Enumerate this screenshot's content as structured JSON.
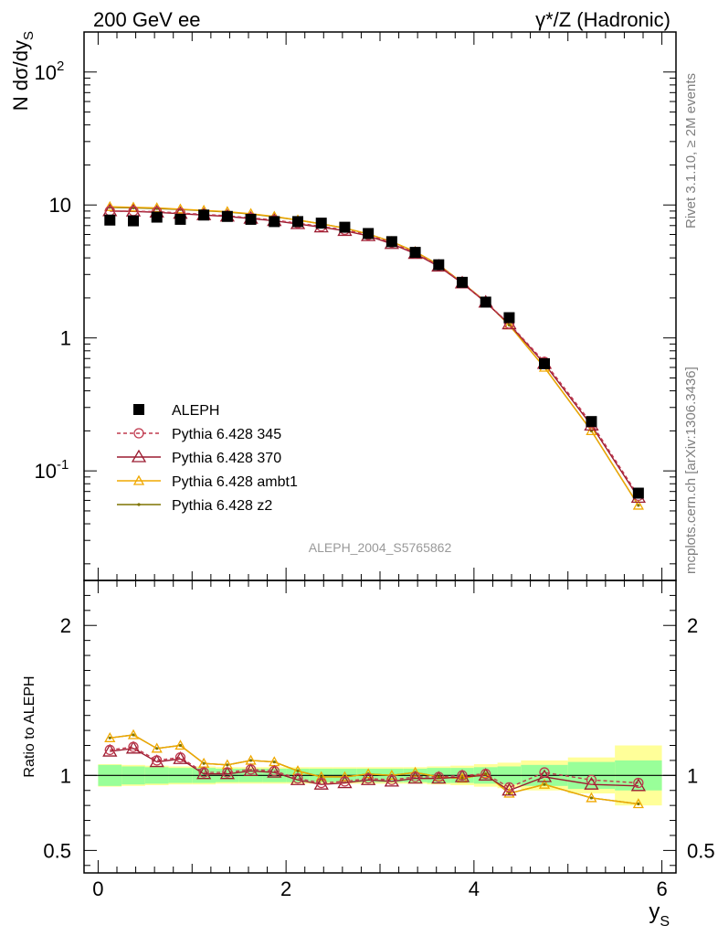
{
  "header": {
    "left": "200 GeV ee",
    "right": "γ*/Z (Hadronic)"
  },
  "side_text": {
    "rivet": "Rivet 3.1.10, ≥ 2M events",
    "mcplots": "mcplots.cern.ch [arXiv:1306.3436]"
  },
  "watermark": "ALEPH_2004_S5765862",
  "colors": {
    "data": "#000000",
    "p345": "#c03a4f",
    "p370": "#9b1b30",
    "ambt1": "#f0a800",
    "z2": "#7f7400",
    "band_inner": "#99ff99",
    "band_outer": "#ffff99"
  },
  "chart_data": [
    {
      "type": "scatter",
      "panel": "main",
      "ylabel": "N dσ/dy_S",
      "yscale": "log",
      "ylim": [
        0.015,
        200
      ],
      "xlim": [
        -0.15,
        6.15
      ],
      "yticks": [
        "10^-1",
        "1",
        "10",
        "10^2"
      ],
      "legend_placement": "lower-left",
      "x": [
        0.125,
        0.375,
        0.625,
        0.875,
        1.125,
        1.375,
        1.625,
        1.875,
        2.125,
        2.375,
        2.625,
        2.875,
        3.125,
        3.375,
        3.625,
        3.875,
        4.125,
        4.375,
        4.75,
        5.25,
        5.75
      ],
      "series": [
        {
          "name": "ALEPH",
          "key": "data",
          "marker": "square",
          "values": [
            7.7,
            7.6,
            8.1,
            7.8,
            8.4,
            8.2,
            7.8,
            7.5,
            7.5,
            7.3,
            6.8,
            6.1,
            5.3,
            4.4,
            3.55,
            2.62,
            1.86,
            1.42,
            0.64,
            0.235,
            0.068
          ]
        },
        {
          "name": "Pythia 6.428 345",
          "key": "p345",
          "marker": "circle",
          "dashed": true,
          "values": [
            9.0,
            9.0,
            8.9,
            8.7,
            8.5,
            8.3,
            8.0,
            7.7,
            7.3,
            6.9,
            6.5,
            5.95,
            5.2,
            4.35,
            3.5,
            2.6,
            1.86,
            1.28,
            0.66,
            0.228,
            0.065
          ]
        },
        {
          "name": "Pythia 6.428 370",
          "key": "p370",
          "marker": "triangle",
          "values": [
            9.0,
            8.95,
            8.8,
            8.6,
            8.4,
            8.2,
            7.9,
            7.6,
            7.2,
            6.8,
            6.4,
            5.85,
            5.1,
            4.3,
            3.45,
            2.58,
            1.85,
            1.27,
            0.64,
            0.22,
            0.063
          ]
        },
        {
          "name": "Pythia 6.428 ambt1",
          "key": "ambt1",
          "marker": "triangle-small",
          "values": [
            9.7,
            9.6,
            9.5,
            9.3,
            9.1,
            8.9,
            8.6,
            8.2,
            7.7,
            7.2,
            6.7,
            6.05,
            5.3,
            4.45,
            3.55,
            2.6,
            1.87,
            1.25,
            0.6,
            0.2,
            0.055
          ]
        },
        {
          "name": "Pythia 6.428 z2",
          "key": "z2",
          "marker": "dot",
          "values": [
            9.6,
            9.5,
            9.4,
            9.25,
            9.05,
            8.85,
            8.55,
            8.15,
            7.7,
            7.2,
            6.7,
            6.05,
            5.3,
            4.45,
            3.55,
            2.6,
            1.87,
            1.25,
            0.6,
            0.2,
            0.055
          ]
        }
      ]
    },
    {
      "type": "line",
      "panel": "ratio",
      "ylabel": "Ratio to ALEPH",
      "xlabel": "y_S",
      "ylim": [
        0.35,
        2.3
      ],
      "xlim": [
        -0.15,
        6.15
      ],
      "xticks": [
        "0",
        "2",
        "4",
        "6"
      ],
      "yticks": [
        "0.5",
        "1",
        "2"
      ],
      "reference_line": 1,
      "bins": [
        [
          0,
          0.25
        ],
        [
          0.25,
          0.5
        ],
        [
          0.5,
          0.75
        ],
        [
          0.75,
          1
        ],
        [
          1,
          1.25
        ],
        [
          1.25,
          1.5
        ],
        [
          1.5,
          1.75
        ],
        [
          1.75,
          2
        ],
        [
          2,
          2.25
        ],
        [
          2.25,
          2.5
        ],
        [
          2.5,
          2.75
        ],
        [
          2.75,
          3
        ],
        [
          3,
          3.25
        ],
        [
          3.25,
          3.5
        ],
        [
          3.5,
          3.75
        ],
        [
          3.75,
          4
        ],
        [
          4,
          4.25
        ],
        [
          4.25,
          4.5
        ],
        [
          4.5,
          5
        ],
        [
          5,
          5.5
        ],
        [
          5.5,
          6
        ]
      ],
      "band_inner": [
        0.07,
        0.06,
        0.055,
        0.05,
        0.05,
        0.045,
        0.045,
        0.045,
        0.045,
        0.045,
        0.045,
        0.045,
        0.045,
        0.045,
        0.05,
        0.05,
        0.055,
        0.06,
        0.07,
        0.09,
        0.1
      ],
      "band_outer": [
        0.075,
        0.07,
        0.065,
        0.06,
        0.06,
        0.055,
        0.055,
        0.055,
        0.055,
        0.055,
        0.055,
        0.055,
        0.055,
        0.055,
        0.06,
        0.065,
        0.075,
        0.085,
        0.1,
        0.12,
        0.2
      ],
      "x": [
        0.125,
        0.375,
        0.625,
        0.875,
        1.125,
        1.375,
        1.625,
        1.875,
        2.125,
        2.375,
        2.625,
        2.875,
        3.125,
        3.375,
        3.625,
        3.875,
        4.125,
        4.375,
        4.75,
        5.25,
        5.75
      ],
      "series": [
        {
          "name": "Pythia 6.428 345",
          "key": "p345",
          "values": [
            1.17,
            1.19,
            1.1,
            1.12,
            1.02,
            1.02,
            1.04,
            1.03,
            0.98,
            0.95,
            0.96,
            0.98,
            0.97,
            0.99,
            0.99,
            1.0,
            1.01,
            0.92,
            1.02,
            0.97,
            0.95
          ]
        },
        {
          "name": "Pythia 6.428 370",
          "key": "p370",
          "values": [
            1.16,
            1.18,
            1.09,
            1.11,
            1.01,
            1.01,
            1.03,
            1.02,
            0.97,
            0.94,
            0.95,
            0.97,
            0.96,
            0.98,
            0.98,
            0.99,
            1.0,
            0.9,
            0.99,
            0.94,
            0.93
          ]
        },
        {
          "name": "Pythia 6.428 ambt1",
          "key": "ambt1",
          "values": [
            1.25,
            1.27,
            1.18,
            1.2,
            1.08,
            1.07,
            1.1,
            1.09,
            1.03,
            0.99,
            0.99,
            1.01,
            1.0,
            1.02,
            0.99,
            0.98,
            1.01,
            0.88,
            0.94,
            0.85,
            0.81
          ]
        },
        {
          "name": "Pythia 6.428 z2",
          "key": "z2",
          "values": [
            1.25,
            1.27,
            1.18,
            1.2,
            1.08,
            1.07,
            1.1,
            1.09,
            1.03,
            0.99,
            0.99,
            1.01,
            1.0,
            1.02,
            0.99,
            0.98,
            1.01,
            0.88,
            0.94,
            0.85,
            0.81
          ]
        }
      ]
    }
  ]
}
